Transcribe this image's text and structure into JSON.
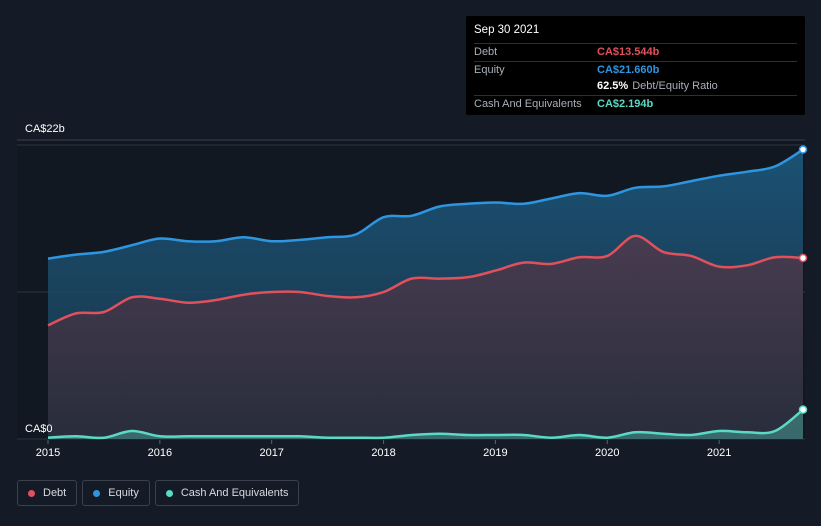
{
  "tooltip": {
    "date": "Sep 30 2021",
    "debt_label": "Debt",
    "debt_value": "CA$13.544b",
    "equity_label": "Equity",
    "equity_value": "CA$21.660b",
    "ratio_value": "62.5%",
    "ratio_label": "Debt/Equity Ratio",
    "cash_label": "Cash And Equivalents",
    "cash_value": "CA$2.194b"
  },
  "legend": {
    "debt": "Debt",
    "equity": "Equity",
    "cash": "Cash And Equivalents"
  },
  "colors": {
    "debt": "#e0515c",
    "equity": "#2e95e0",
    "cash": "#5ad9c5",
    "background": "#151b26"
  },
  "chart_data": {
    "type": "area",
    "y_axis_labels": [
      "CA$22b",
      "CA$0"
    ],
    "x_tick_labels": [
      "2015",
      "2016",
      "2017",
      "2018",
      "2019",
      "2020",
      "2021"
    ],
    "ylim": [
      0,
      22
    ],
    "xlim": [
      2015.0,
      2021.75
    ],
    "grid": true,
    "legend_position": "bottom-left",
    "series": [
      {
        "name": "Equity",
        "points": [
          [
            2015.0,
            13.5
          ],
          [
            2015.25,
            13.8
          ],
          [
            2015.5,
            14.0
          ],
          [
            2015.75,
            14.5
          ],
          [
            2016.0,
            15.0
          ],
          [
            2016.25,
            14.8
          ],
          [
            2016.5,
            14.8
          ],
          [
            2016.75,
            15.1
          ],
          [
            2017.0,
            14.8
          ],
          [
            2017.25,
            14.9
          ],
          [
            2017.5,
            15.1
          ],
          [
            2017.75,
            15.3
          ],
          [
            2018.0,
            16.6
          ],
          [
            2018.25,
            16.7
          ],
          [
            2018.5,
            17.4
          ],
          [
            2018.75,
            17.6
          ],
          [
            2019.0,
            17.7
          ],
          [
            2019.25,
            17.6
          ],
          [
            2019.5,
            18.0
          ],
          [
            2019.75,
            18.4
          ],
          [
            2020.0,
            18.2
          ],
          [
            2020.25,
            18.8
          ],
          [
            2020.5,
            18.9
          ],
          [
            2020.75,
            19.3
          ],
          [
            2021.0,
            19.7
          ],
          [
            2021.25,
            20.0
          ],
          [
            2021.5,
            20.4
          ],
          [
            2021.75,
            21.66
          ]
        ]
      },
      {
        "name": "Debt",
        "points": [
          [
            2015.0,
            8.5
          ],
          [
            2015.25,
            9.4
          ],
          [
            2015.5,
            9.5
          ],
          [
            2015.75,
            10.6
          ],
          [
            2016.0,
            10.5
          ],
          [
            2016.25,
            10.2
          ],
          [
            2016.5,
            10.4
          ],
          [
            2016.75,
            10.8
          ],
          [
            2017.0,
            11.0
          ],
          [
            2017.25,
            11.0
          ],
          [
            2017.5,
            10.7
          ],
          [
            2017.75,
            10.6
          ],
          [
            2018.0,
            11.0
          ],
          [
            2018.25,
            12.0
          ],
          [
            2018.5,
            12.0
          ],
          [
            2018.75,
            12.1
          ],
          [
            2019.0,
            12.6
          ],
          [
            2019.25,
            13.2
          ],
          [
            2019.5,
            13.1
          ],
          [
            2019.75,
            13.6
          ],
          [
            2020.0,
            13.7
          ],
          [
            2020.25,
            15.2
          ],
          [
            2020.5,
            14.0
          ],
          [
            2020.75,
            13.7
          ],
          [
            2021.0,
            12.9
          ],
          [
            2021.25,
            13.0
          ],
          [
            2021.5,
            13.6
          ],
          [
            2021.75,
            13.544
          ]
        ]
      },
      {
        "name": "Cash And Equivalents",
        "points": [
          [
            2015.0,
            0.1
          ],
          [
            2015.25,
            0.2
          ],
          [
            2015.5,
            0.1
          ],
          [
            2015.75,
            0.6
          ],
          [
            2016.0,
            0.2
          ],
          [
            2016.25,
            0.2
          ],
          [
            2016.5,
            0.2
          ],
          [
            2016.75,
            0.2
          ],
          [
            2017.0,
            0.2
          ],
          [
            2017.25,
            0.2
          ],
          [
            2017.5,
            0.1
          ],
          [
            2017.75,
            0.1
          ],
          [
            2018.0,
            0.1
          ],
          [
            2018.25,
            0.3
          ],
          [
            2018.5,
            0.4
          ],
          [
            2018.75,
            0.3
          ],
          [
            2019.0,
            0.3
          ],
          [
            2019.25,
            0.3
          ],
          [
            2019.5,
            0.1
          ],
          [
            2019.75,
            0.3
          ],
          [
            2020.0,
            0.1
          ],
          [
            2020.25,
            0.5
          ],
          [
            2020.5,
            0.4
          ],
          [
            2020.75,
            0.3
          ],
          [
            2021.0,
            0.6
          ],
          [
            2021.25,
            0.5
          ],
          [
            2021.5,
            0.6
          ],
          [
            2021.75,
            2.194
          ]
        ]
      }
    ]
  }
}
